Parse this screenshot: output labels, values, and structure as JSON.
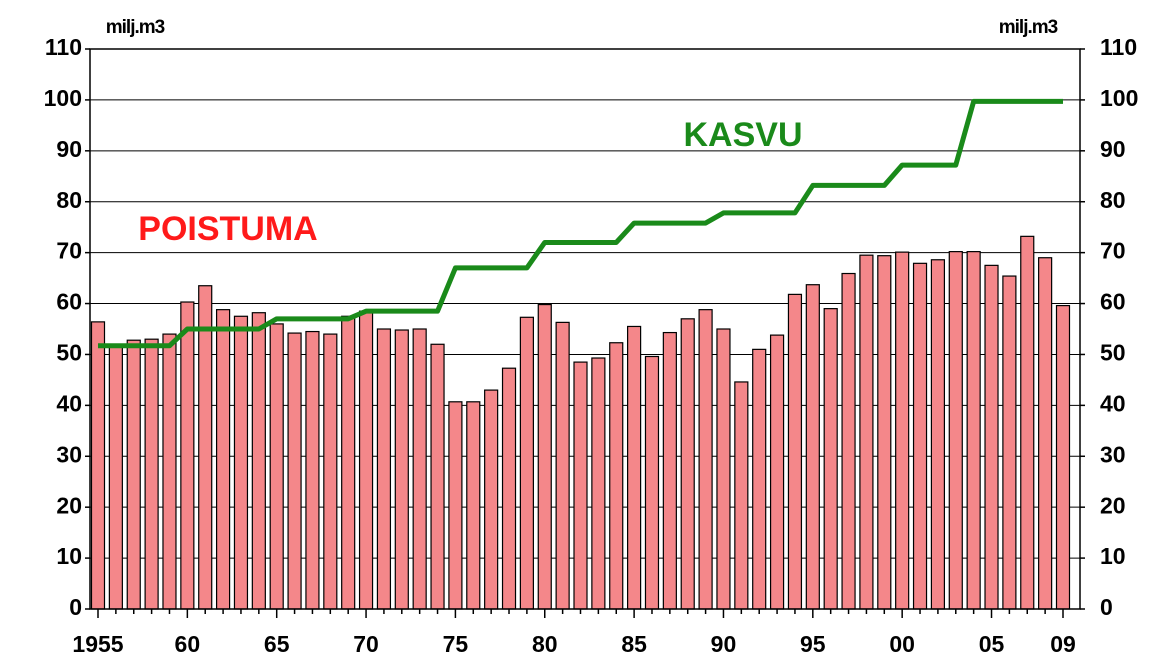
{
  "chart_data": {
    "type": "bar",
    "ylabel": "milj.m3",
    "y2label": "milj.m3",
    "categories": [
      "1955",
      null,
      null,
      null,
      null,
      "60",
      null,
      null,
      null,
      null,
      "65",
      null,
      null,
      null,
      null,
      "70",
      null,
      null,
      null,
      null,
      "75",
      null,
      null,
      null,
      null,
      "80",
      null,
      null,
      null,
      null,
      "85",
      null,
      null,
      null,
      null,
      "90",
      null,
      null,
      null,
      null,
      "95",
      null,
      null,
      null,
      null,
      "00",
      null,
      null,
      null,
      null,
      "05",
      null,
      null,
      null,
      "09"
    ],
    "series": [
      {
        "name": "POISTUMA",
        "type": "bar",
        "color": "#f4878a",
        "label_color": "#ff1a1a",
        "values": [
          56.4,
          52,
          52.8,
          53,
          54,
          60.3,
          63.5,
          58.8,
          57.5,
          58.2,
          56,
          54.2,
          54.5,
          54,
          57.5,
          58.5,
          55,
          54.8,
          55,
          52,
          40.7,
          40.7,
          43,
          47.3,
          57.3,
          59.8,
          56.3,
          48.5,
          49.3,
          52.3,
          55.5,
          49.6,
          54.3,
          57,
          58.8,
          55,
          44.6,
          51,
          53.8,
          61.8,
          63.7,
          59,
          65.9,
          69.5,
          69.4,
          70.1,
          67.9,
          68.6,
          70.2,
          70.2,
          67.5,
          65.4,
          73.2,
          69,
          59.6
        ]
      },
      {
        "name": "KASVU",
        "type": "line",
        "axis": "y2",
        "color": "#1a8a1a",
        "label_color": "#1a8a1a",
        "values": [
          51.7,
          51.7,
          51.7,
          51.7,
          51.7,
          55,
          55,
          55,
          55,
          55,
          57,
          57,
          57,
          57,
          57,
          58.5,
          58.5,
          58.5,
          58.5,
          58.5,
          67,
          67,
          67,
          67,
          67,
          72,
          72,
          72,
          72,
          72,
          75.8,
          75.8,
          75.8,
          75.8,
          75.8,
          77.8,
          77.8,
          77.8,
          77.8,
          77.8,
          83.2,
          83.2,
          83.2,
          83.2,
          83.2,
          87.2,
          87.2,
          87.2,
          87.2,
          99.7,
          99.7,
          99.7,
          99.7,
          99.7,
          99.7
        ]
      }
    ],
    "ylim": [
      0,
      110
    ],
    "yticks": [
      0,
      10,
      20,
      30,
      40,
      50,
      60,
      70,
      80,
      90,
      100,
      110
    ],
    "y2lim": [
      0,
      110
    ],
    "y2ticks": [
      0,
      10,
      20,
      30,
      40,
      50,
      60,
      70,
      80,
      90,
      100,
      110
    ],
    "grid": true
  }
}
